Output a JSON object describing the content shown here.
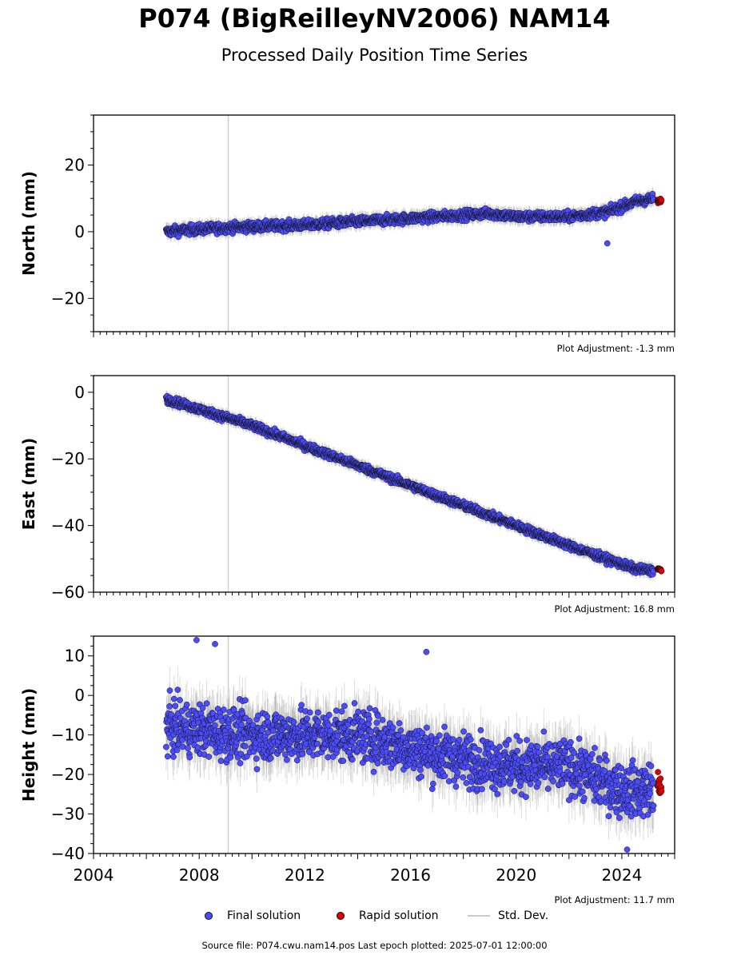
{
  "header": {
    "title": "P074 (BigReilleyNV2006) NAM14",
    "subtitle": "Processed Daily Position Time Series"
  },
  "legend": {
    "final": "Final solution",
    "rapid": "Rapid solution",
    "std": "Std. Dev."
  },
  "footer": {
    "source": "Source file: P074.cwu.nam14.pos  Last epoch plotted: 2025-07-01 12:00:00"
  },
  "colors": {
    "final": "#4c4cff",
    "rapid": "#e00000",
    "std": "#bbbbbb",
    "vline": "#d0d0d0"
  },
  "chart_data": [
    {
      "type": "scatter",
      "ylabel": "North (mm)",
      "adjustment": "Plot Adjustment: -1.3 mm",
      "xlim": [
        2004,
        2026
      ],
      "ylim": [
        -30,
        35
      ],
      "yticks": [
        20,
        0,
        -20
      ],
      "ytick_labels": [
        "20",
        "0",
        "−20"
      ],
      "event_line_x": 2009.1,
      "series": [
        {
          "name": "Final solution",
          "x": [
            2006.75,
            2007.5,
            2008.5,
            2010,
            2012,
            2014,
            2016,
            2018,
            2019,
            2020,
            2022,
            2023.5,
            2024.5,
            2025.2
          ],
          "y": [
            0,
            0.5,
            1,
            1.5,
            2,
            3,
            4,
            5,
            5.5,
            4.5,
            4.5,
            6,
            9,
            10
          ],
          "noise": 1.2
        },
        {
          "name": "Rapid solution",
          "x": [
            2025.35,
            2025.5
          ],
          "y": [
            9,
            9.5
          ],
          "noise": 0.5
        }
      ],
      "outliers": [
        {
          "x": 2023.45,
          "y": -3.5
        }
      ]
    },
    {
      "type": "scatter",
      "ylabel": "East (mm)",
      "adjustment": "Plot Adjustment: 16.8 mm",
      "xlim": [
        2004,
        2026
      ],
      "ylim": [
        -60,
        5
      ],
      "yticks": [
        0,
        -20,
        -40,
        -60
      ],
      "ytick_labels": [
        "0",
        "−20",
        "−40",
        "−60"
      ],
      "event_line_x": 2009.1,
      "series": [
        {
          "name": "Final solution",
          "x": [
            2006.75,
            2010,
            2014,
            2018,
            2022,
            2024.5,
            2025.2
          ],
          "y": [
            -2,
            -10,
            -22,
            -34,
            -46,
            -53,
            -53.5
          ],
          "noise": 1.0
        },
        {
          "name": "Rapid solution",
          "x": [
            2025.35,
            2025.5
          ],
          "y": [
            -53,
            -53.5
          ],
          "noise": 0.5
        }
      ],
      "outliers": []
    },
    {
      "type": "scatter",
      "ylabel": "Height (mm)",
      "adjustment": "Plot Adjustment: 11.7 mm",
      "xlim": [
        2004,
        2026
      ],
      "ylim": [
        -40,
        15
      ],
      "yticks": [
        10,
        0,
        -10,
        -20,
        -30,
        -40
      ],
      "ytick_labels": [
        "10",
        "0",
        "−10",
        "−20",
        "−30",
        "−40"
      ],
      "xticks": [
        2004,
        2008,
        2012,
        2016,
        2020,
        2024
      ],
      "xtick_labels": [
        "2004",
        "2008",
        "2012",
        "2016",
        "2020",
        "2024"
      ],
      "event_line_x": 2009.1,
      "series": [
        {
          "name": "Final solution",
          "x": [
            2006.75,
            2010,
            2014,
            2017,
            2020,
            2022,
            2024,
            2025.2
          ],
          "y": [
            -8,
            -10,
            -10,
            -15,
            -18,
            -18,
            -24,
            -24
          ],
          "noise": 5.5
        },
        {
          "name": "Rapid solution",
          "x": [
            2025.35,
            2025.5
          ],
          "y": [
            -22,
            -25
          ],
          "noise": 3
        }
      ],
      "outliers": [
        {
          "x": 2007.9,
          "y": 14
        },
        {
          "x": 2008.6,
          "y": 13
        },
        {
          "x": 2016.6,
          "y": 11
        },
        {
          "x": 2024.2,
          "y": -39
        }
      ]
    }
  ]
}
